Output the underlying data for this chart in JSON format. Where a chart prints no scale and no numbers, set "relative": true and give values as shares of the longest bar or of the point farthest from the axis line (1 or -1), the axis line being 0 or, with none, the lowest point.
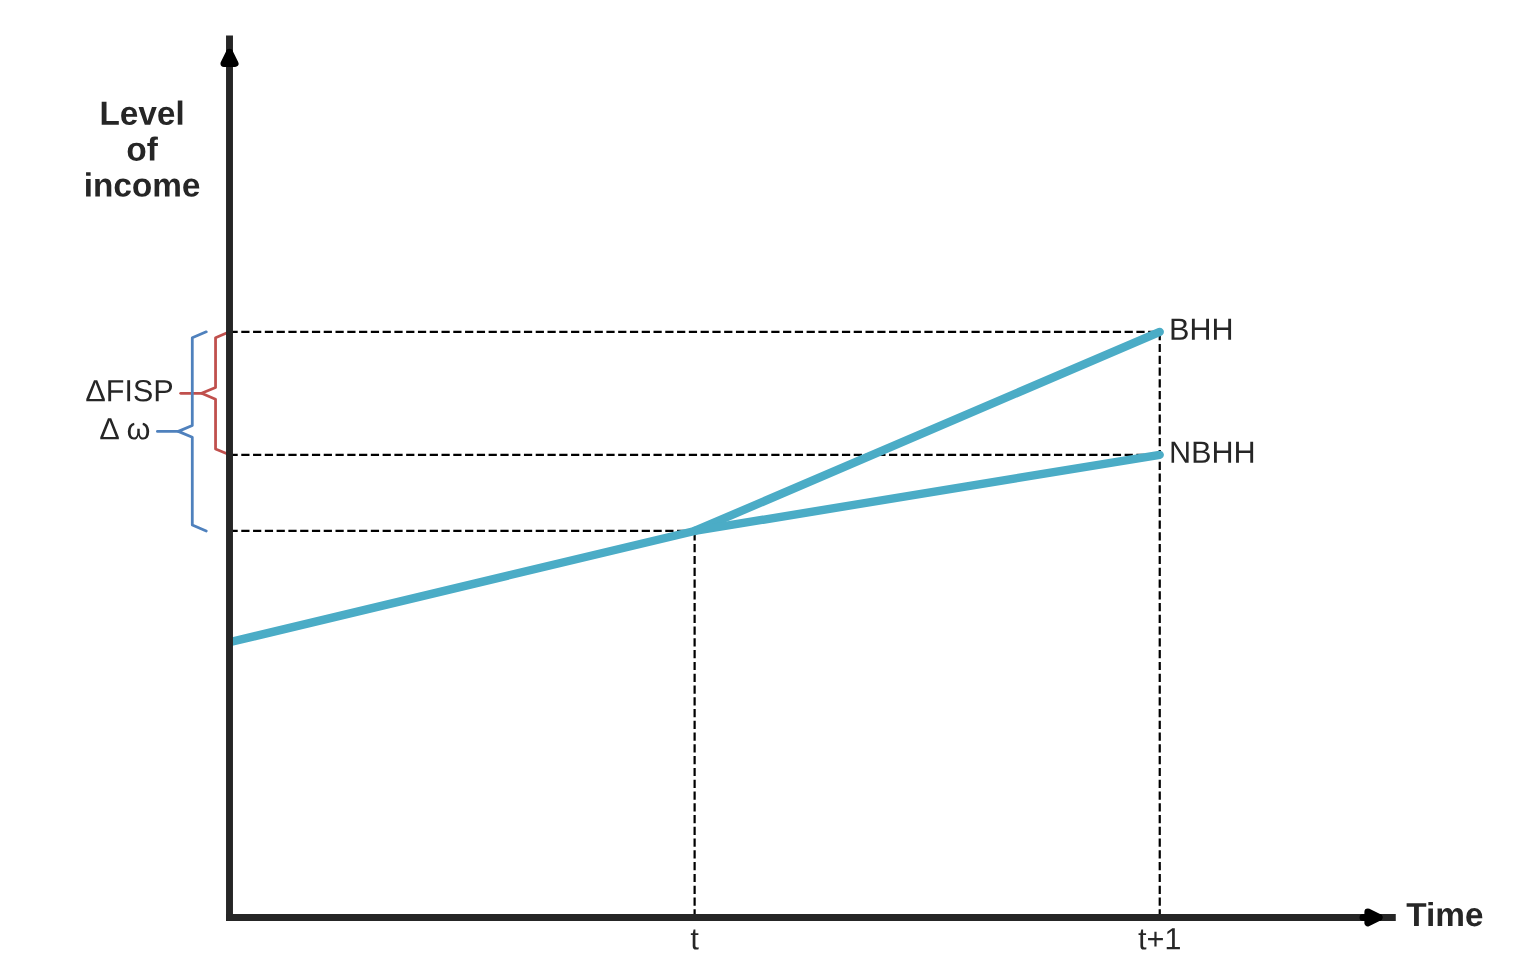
{
  "chart_data": {
    "type": "line",
    "relative": true,
    "ylabel": "Level\nof\nincome",
    "categories": [
      null,
      "t",
      "t+1"
    ],
    "series": [
      {
        "name": "BHH",
        "color": "#4bacc6",
        "values": [
          0.47,
          0.66,
          1
        ]
      },
      {
        "name": "NBHH",
        "color": "#4bacc6",
        "values": [
          null,
          0.66,
          0.79
        ]
      }
    ],
    "ref_lines": [
      {
        "axis": "y",
        "value": 0.66,
        "color": "#000000",
        "line_style": "dashed"
      },
      {
        "axis": "y",
        "value": 0.79,
        "color": "#000000",
        "line_style": "dashed"
      },
      {
        "axis": "y",
        "value": 1,
        "color": "#000000",
        "line_style": "dashed"
      },
      {
        "axis": "x",
        "value": "t",
        "color": "#000000",
        "line_style": "dashed"
      },
      {
        "axis": "x",
        "value": "t+1",
        "color": "#000000",
        "line_style": "dashed"
      }
    ],
    "annotations": [
      "ΔFISP",
      "Δ ω",
      "Time"
    ],
    "grid": false,
    "legend": false,
    "marker": "none",
    "line_style": "solid"
  }
}
